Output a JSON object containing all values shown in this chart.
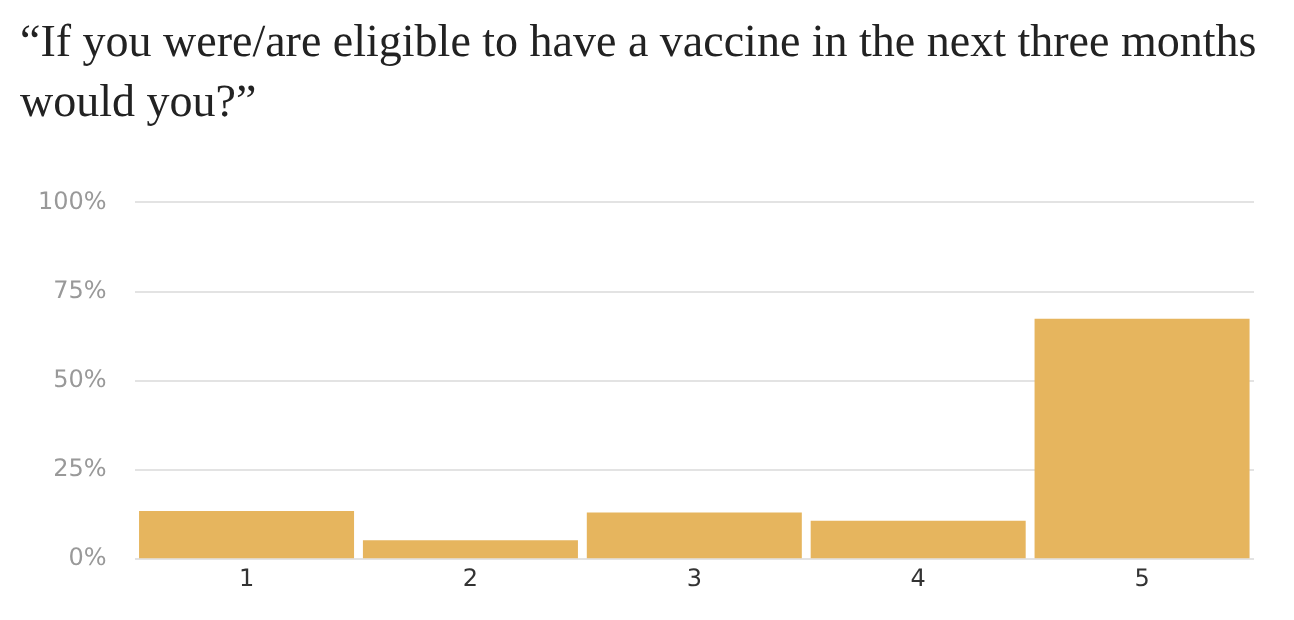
{
  "chart_data": {
    "type": "bar",
    "title": "“If you were/are eligible to have a vaccine in the next three months would you?”",
    "categories": [
      "1",
      "2",
      "3",
      "4",
      "5"
    ],
    "values": [
      13.5,
      5.3,
      13.1,
      10.8,
      67.4
    ],
    "color": "#e6b55e",
    "ylim": [
      0,
      100
    ],
    "yticks": [
      {
        "value": 0,
        "label": "0%"
      },
      {
        "value": 25,
        "label": "25%"
      },
      {
        "value": 50,
        "label": "50%"
      },
      {
        "value": 75,
        "label": "75%"
      },
      {
        "value": 100,
        "label": "100%"
      }
    ],
    "grid": "y"
  }
}
